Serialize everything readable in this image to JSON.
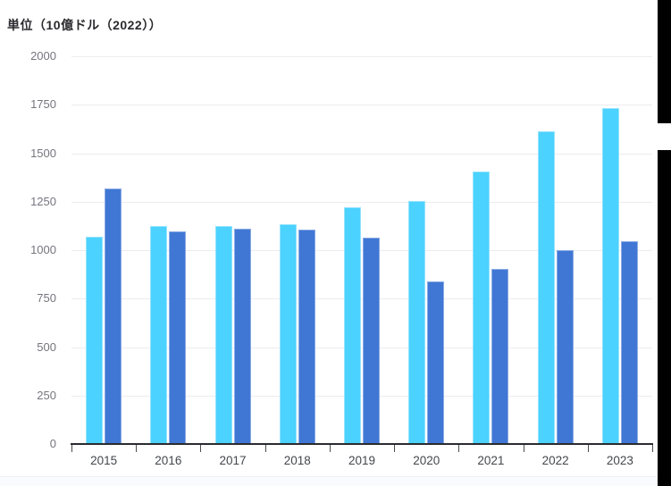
{
  "colors": {
    "background": "#ffffff",
    "title_text": "#2a2a2e",
    "gridline": "#ececf0",
    "axis_line": "#2a2b2f",
    "tick_mark": "#4a4c52",
    "y_label_text": "#75757e",
    "x_label_text": "#45474d",
    "edge_artifact": "#000000",
    "series_light_blue": "#4bd2fe",
    "series_light_blue_border": "#93e3ff",
    "series_dark_blue": "#4077d4",
    "series_dark_blue_border": "#8aabe5"
  },
  "chart_data": {
    "type": "bar",
    "title": "単位（10億ドル（2022））",
    "xlabel": "",
    "ylabel": "",
    "categories": [
      "2015",
      "2016",
      "2017",
      "2018",
      "2019",
      "2020",
      "2021",
      "2022",
      "2023"
    ],
    "series": [
      {
        "name": "light-blue",
        "color": "#4bd2fe",
        "border_color": "#93e3ff",
        "values": [
          1070,
          1125,
          1125,
          1135,
          1220,
          1255,
          1405,
          1615,
          1735
        ]
      },
      {
        "name": "dark-blue",
        "color": "#4077d4",
        "border_color": "#8aabe5",
        "values": [
          1320,
          1095,
          1110,
          1105,
          1065,
          840,
          905,
          1000,
          1045
        ]
      }
    ],
    "ylim": [
      0,
      2000
    ],
    "yticks": [
      0,
      250,
      500,
      750,
      1000,
      1250,
      1500,
      1750,
      2000
    ],
    "grid": true,
    "legend_position": "none"
  }
}
